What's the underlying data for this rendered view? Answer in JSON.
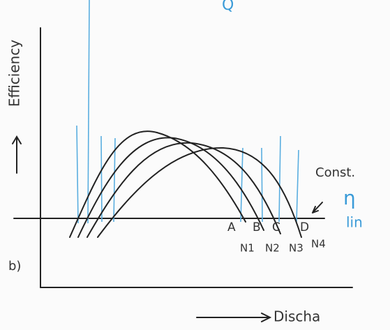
{
  "top_mark": "Q",
  "axes": {
    "y_label": "Efficiency",
    "x_label": "Discha"
  },
  "figure_label": "b)",
  "curves": [
    {
      "point": "A",
      "speed": "N1"
    },
    {
      "point": "B",
      "speed": "N2"
    },
    {
      "point": "C",
      "speed": "N3"
    },
    {
      "point": "D",
      "speed": "N4"
    }
  ],
  "annotation": {
    "line1": "Const.",
    "line2": "η",
    "line3": "lin"
  }
}
